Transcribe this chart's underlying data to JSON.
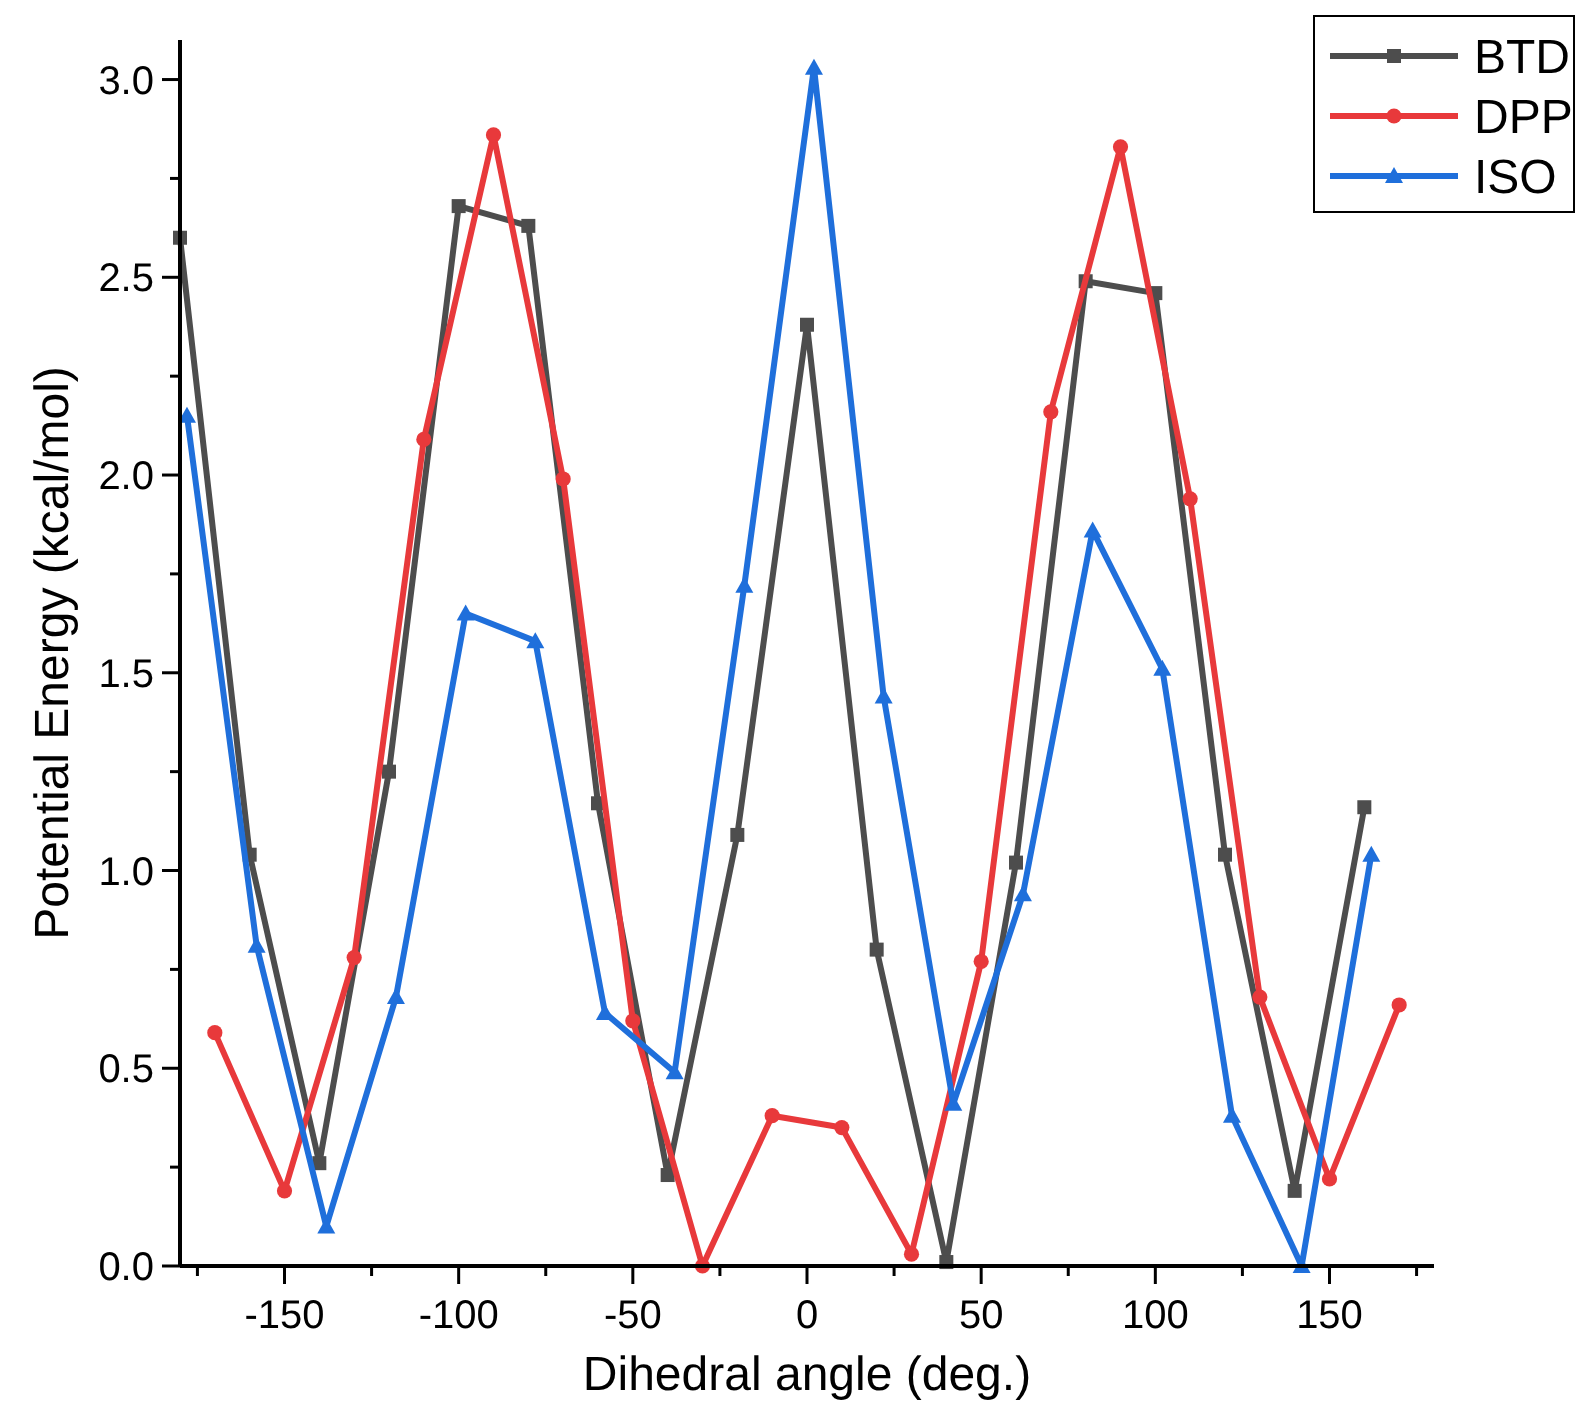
{
  "chart_data": {
    "type": "line",
    "xlabel": "Dihedral angle (deg.)",
    "ylabel": "Potential Energy (kcal/mol)",
    "xlim": [
      -180,
      180
    ],
    "xticks": [
      {
        "value": -175,
        "label": null
      },
      -150,
      {
        "value": -125,
        "label": null
      },
      -100,
      {
        "value": -75,
        "label": null
      },
      -50,
      {
        "value": -25,
        "label": null
      },
      0,
      {
        "value": 25,
        "label": null
      },
      50,
      {
        "value": 75,
        "label": null
      },
      100,
      {
        "value": 125,
        "label": null
      },
      150,
      {
        "value": 175,
        "label": null
      }
    ],
    "ylim": [
      0,
      3.1
    ],
    "yticks": [
      {
        "value": 0,
        "label": "0.0"
      },
      {
        "value": 0.25,
        "label": null
      },
      0.5,
      {
        "value": 0.75,
        "label": null
      },
      {
        "value": 1,
        "label": "1.0"
      },
      {
        "value": 1.25,
        "label": null
      },
      1.5,
      {
        "value": 1.75,
        "label": null
      },
      {
        "value": 2,
        "label": "2.0"
      },
      {
        "value": 2.25,
        "label": null
      },
      2.5,
      {
        "value": 2.75,
        "label": null
      },
      {
        "value": 3,
        "label": "3.0"
      }
    ],
    "grid": false,
    "legend": "top right",
    "line_style": "solid",
    "series": [
      {
        "name": "BTD",
        "color": "#4d4d4d",
        "marker": "square",
        "x": [
          -180,
          -160,
          -140,
          -120,
          -100,
          -80,
          -60,
          -40,
          -20,
          0,
          20,
          40,
          60,
          80,
          100,
          120,
          140,
          160
        ],
        "values": [
          2.6,
          1.04,
          0.26,
          1.25,
          2.68,
          2.63,
          1.17,
          0.23,
          1.09,
          2.38,
          0.8,
          0.01,
          1.02,
          2.49,
          2.46,
          1.04,
          0.19,
          1.16
        ]
      },
      {
        "name": "DPP",
        "color": "#e8393b",
        "marker": "circle",
        "x": [
          -170,
          -150,
          -130,
          -110,
          -90,
          -70,
          -50,
          -30,
          -10,
          10,
          30,
          50,
          70,
          90,
          110,
          130,
          150,
          170
        ],
        "values": [
          0.59,
          0.19,
          0.78,
          2.09,
          2.86,
          1.99,
          0.62,
          0.0,
          0.38,
          0.35,
          0.03,
          0.77,
          2.16,
          2.83,
          1.94,
          0.68,
          0.22,
          0.66
        ]
      },
      {
        "name": "ISO",
        "color": "#1f6fdb",
        "marker": "triangle",
        "x": [
          -178,
          -158,
          -138,
          -118,
          -98,
          -78,
          -58,
          -38,
          -18,
          2,
          22,
          42,
          62,
          82,
          102,
          122,
          142,
          162
        ],
        "values": [
          2.15,
          0.81,
          0.1,
          0.68,
          1.65,
          1.58,
          0.64,
          0.49,
          1.72,
          3.03,
          1.44,
          0.41,
          0.94,
          1.86,
          1.51,
          0.38,
          0.0,
          1.04
        ]
      }
    ]
  }
}
